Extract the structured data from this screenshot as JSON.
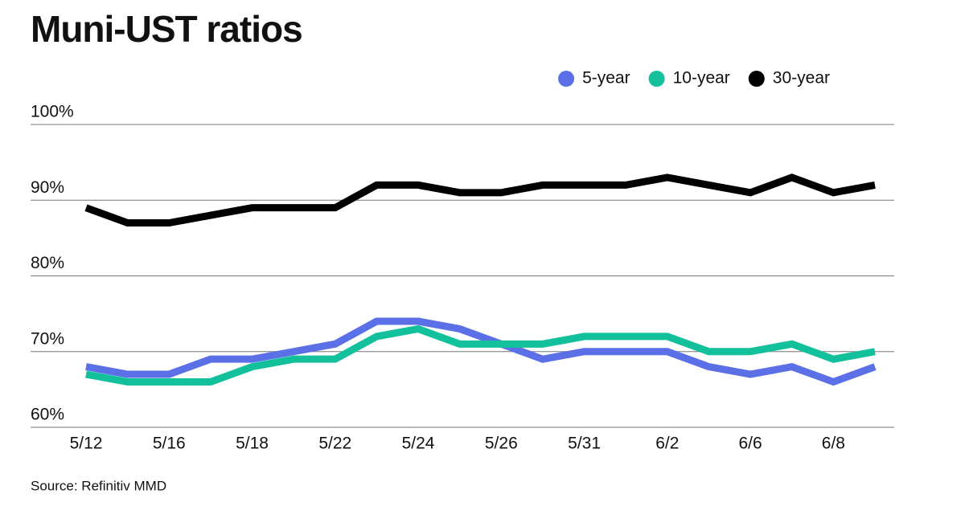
{
  "chart_data": {
    "type": "line",
    "title": "Muni-UST ratios",
    "source": "Source: Refinitiv MMD",
    "categories": [
      "5/12",
      null,
      "5/16",
      null,
      "5/18",
      null,
      "5/22",
      null,
      "5/24",
      null,
      "5/26",
      null,
      "5/31",
      null,
      "6/2",
      null,
      "6/6",
      null,
      "6/8",
      null
    ],
    "series": [
      {
        "name": "5-year",
        "color": "#5b6fe6",
        "values": [
          68,
          67,
          67,
          69,
          69,
          70,
          71,
          74,
          74,
          73,
          71,
          69,
          70,
          70,
          70,
          68,
          67,
          68,
          66,
          68
        ]
      },
      {
        "name": "10-year",
        "color": "#12c09b",
        "values": [
          67,
          66,
          66,
          66,
          68,
          69,
          69,
          72,
          73,
          71,
          71,
          71,
          72,
          72,
          72,
          70,
          70,
          71,
          69,
          70
        ]
      },
      {
        "name": "30-year",
        "color": "#000000",
        "values": [
          89,
          87,
          87,
          88,
          89,
          89,
          89,
          92,
          92,
          91,
          91,
          92,
          92,
          92,
          93,
          92,
          91,
          93,
          91,
          92
        ]
      }
    ],
    "ylim": [
      60,
      100
    ],
    "yticks": [
      {
        "value": 60,
        "label": "60%"
      },
      {
        "value": 70,
        "label": "70%"
      },
      {
        "value": 80,
        "label": "80%"
      },
      {
        "value": 90,
        "label": "90%"
      },
      {
        "value": 100,
        "label": "100%"
      }
    ],
    "grid": true
  }
}
